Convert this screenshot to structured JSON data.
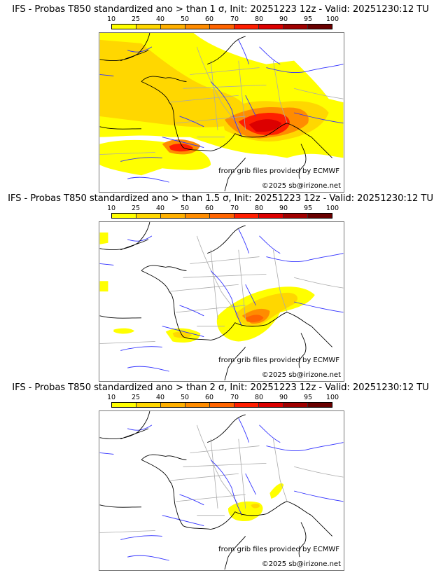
{
  "panels": [
    {
      "title": "IFS - Probas T850  standardized ano > than 1 σ, Init: 20251223 12z - Valid: 20251230:12 TU",
      "threshold": "1 σ",
      "credit_source": "from grib files provided by ECMWF",
      "credit_copyright": "©2025 sb@irizone.net"
    },
    {
      "title": "IFS - Probas T850  standardized ano > than 1.5 σ, Init: 20251223 12z - Valid: 20251230:12 TU",
      "threshold": "1.5 σ",
      "credit_source": "from grib files provided by ECMWF",
      "credit_copyright": "©2025 sb@irizone.net"
    },
    {
      "title": "IFS - Probas T850  standardized ano > than 2 σ, Init: 20251223 12z - Valid: 20251230:12 TU",
      "threshold": "2 σ",
      "credit_source": "from grib files provided by ECMWF",
      "credit_copyright": "©2025 sb@irizone.net"
    }
  ],
  "colorbar": {
    "ticks": [
      "10",
      "25",
      "40",
      "50",
      "60",
      "70",
      "80",
      "90",
      "95",
      "100"
    ],
    "colors": [
      "#ffff00",
      "#ffd700",
      "#ffb000",
      "#ff8c00",
      "#ff6400",
      "#ff1e00",
      "#dc0000",
      "#a00000",
      "#690000"
    ]
  },
  "map_colors": {
    "coast": "#000000",
    "rivers": "#3030ff",
    "borders": "#aaaaaa"
  }
}
